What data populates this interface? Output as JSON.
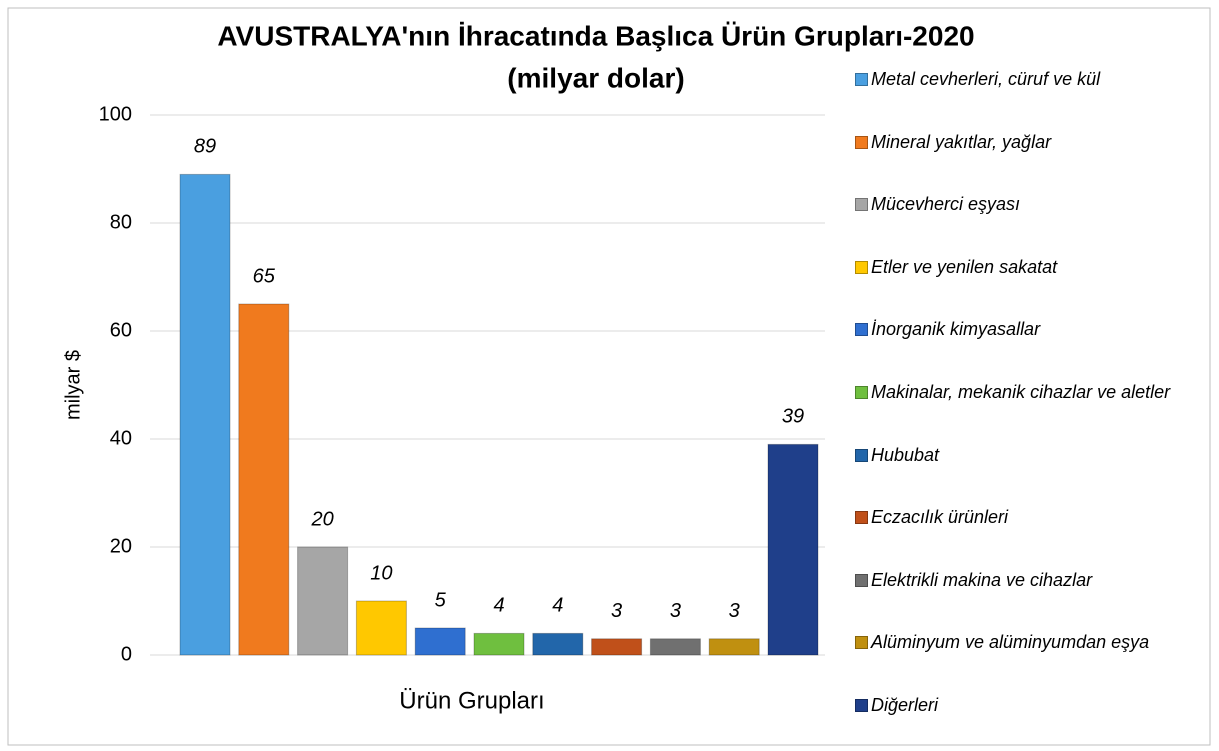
{
  "chart_data": {
    "type": "bar",
    "title": "AVUSTRALYA'nın İhracatında Başlıca Ürün Grupları-2020",
    "subtitle": "(milyar dolar)",
    "y_label": "milyar $",
    "x_label": "Ürün Grupları",
    "ylim": [
      0,
      100
    ],
    "yticks": [
      0,
      20,
      40,
      60,
      80,
      100
    ],
    "grid": true,
    "legend": "right",
    "series": [
      {
        "name": "Metal cevherleri, cüruf ve kül",
        "color": "#4a9fe0",
        "values": [
          89
        ]
      },
      {
        "name": "Mineral yakıtlar, yağlar",
        "color": "#f07a1e",
        "values": [
          65
        ]
      },
      {
        "name": "Mücevherci eşyası",
        "color": "#a6a6a6",
        "values": [
          20
        ]
      },
      {
        "name": "Etler ve yenilen sakatat",
        "color": "#ffc800",
        "values": [
          10
        ]
      },
      {
        "name": "İnorganik kimyasallar",
        "color": "#2f6fd0",
        "values": [
          5
        ]
      },
      {
        "name": "Makinalar, mekanik cihazlar ve aletler",
        "color": "#6fbf3f",
        "values": [
          4
        ]
      },
      {
        "name": "Hububat",
        "color": "#2266aa",
        "values": [
          4
        ]
      },
      {
        "name": "Eczacılık ürünleri",
        "color": "#c0501a",
        "values": [
          3
        ]
      },
      {
        "name": "Elektrikli makina ve cihazlar",
        "color": "#707070",
        "values": [
          3
        ]
      },
      {
        "name": "Alüminyum ve alüminyumdan eşya",
        "color": "#c09010",
        "values": [
          3
        ]
      },
      {
        "name": "Diğerleri",
        "color": "#1f3f8a",
        "values": [
          39
        ]
      }
    ]
  }
}
